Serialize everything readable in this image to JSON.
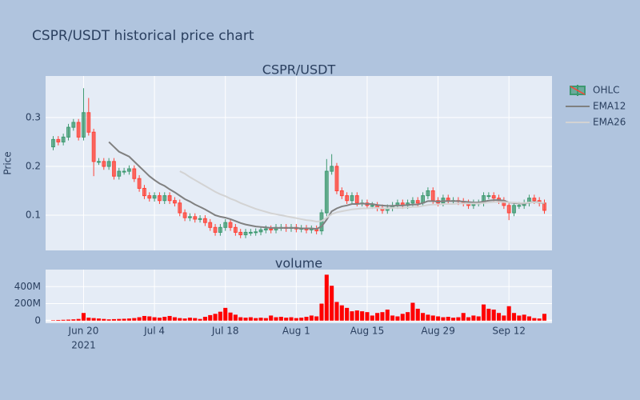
{
  "chart_data": {
    "type": "candlestick",
    "title": "CSPR/USDT historical price chart",
    "x": [
      "2021-06-14",
      "2021-06-15",
      "2021-06-16",
      "2021-06-17",
      "2021-06-18",
      "2021-06-19",
      "2021-06-20",
      "2021-06-21",
      "2021-06-22",
      "2021-06-23",
      "2021-06-24",
      "2021-06-25",
      "2021-06-26",
      "2021-06-27",
      "2021-06-28",
      "2021-06-29",
      "2021-06-30",
      "2021-07-01",
      "2021-07-02",
      "2021-07-03",
      "2021-07-04",
      "2021-07-05",
      "2021-07-06",
      "2021-07-07",
      "2021-07-08",
      "2021-07-09",
      "2021-07-10",
      "2021-07-11",
      "2021-07-12",
      "2021-07-13",
      "2021-07-14",
      "2021-07-15",
      "2021-07-16",
      "2021-07-17",
      "2021-07-18",
      "2021-07-19",
      "2021-07-20",
      "2021-07-21",
      "2021-07-22",
      "2021-07-23",
      "2021-07-24",
      "2021-07-25",
      "2021-07-26",
      "2021-07-27",
      "2021-07-28",
      "2021-07-29",
      "2021-07-30",
      "2021-07-31",
      "2021-08-01",
      "2021-08-02",
      "2021-08-03",
      "2021-08-04",
      "2021-08-05",
      "2021-08-06",
      "2021-08-07",
      "2021-08-08",
      "2021-08-09",
      "2021-08-10",
      "2021-08-11",
      "2021-08-12",
      "2021-08-13",
      "2021-08-14",
      "2021-08-15",
      "2021-08-16",
      "2021-08-17",
      "2021-08-18",
      "2021-08-19",
      "2021-08-20",
      "2021-08-21",
      "2021-08-22",
      "2021-08-23",
      "2021-08-24",
      "2021-08-25",
      "2021-08-26",
      "2021-08-27",
      "2021-08-28",
      "2021-08-29",
      "2021-08-30",
      "2021-08-31",
      "2021-09-01",
      "2021-09-02",
      "2021-09-03",
      "2021-09-04",
      "2021-09-05",
      "2021-09-06",
      "2021-09-07",
      "2021-09-08",
      "2021-09-09",
      "2021-09-10",
      "2021-09-11",
      "2021-09-12",
      "2021-09-13",
      "2021-09-14",
      "2021-09-15",
      "2021-09-16",
      "2021-09-17",
      "2021-09-18",
      "2021-09-19"
    ],
    "xlim": [
      "2021-06-12T12",
      "2021-09-20T12"
    ],
    "xticks": [
      {
        "value": "2021-06-20",
        "label": "Jun 20"
      },
      {
        "value": "2021-07-04",
        "label": "Jul 4"
      },
      {
        "value": "2021-07-18",
        "label": "Jul 18"
      },
      {
        "value": "2021-08-01",
        "label": "Aug 1"
      },
      {
        "value": "2021-08-15",
        "label": "Aug 15"
      },
      {
        "value": "2021-08-29",
        "label": "Aug 29"
      },
      {
        "value": "2021-09-12",
        "label": "Sep 12"
      }
    ],
    "xtick_year": "2021",
    "grid": true,
    "legend": "right",
    "panels": [
      {
        "title": "CSPR/USDT",
        "ylabel": "Price",
        "ylim": [
          0.028,
          0.385
        ],
        "yticks": [
          0.1,
          0.2,
          0.3
        ],
        "series": [
          {
            "name": "OHLC",
            "type": "ohlc",
            "increasing_color": "#3d9970",
            "decreasing_color": "#ff4136",
            "open": [
              0.24,
              0.255,
              0.25,
              0.26,
              0.28,
              0.29,
              0.26,
              0.31,
              0.27,
              0.21,
              0.21,
              0.2,
              0.21,
              0.18,
              0.19,
              0.19,
              0.195,
              0.175,
              0.155,
              0.14,
              0.135,
              0.14,
              0.13,
              0.14,
              0.13,
              0.125,
              0.105,
              0.095,
              0.097,
              0.092,
              0.093,
              0.085,
              0.075,
              0.065,
              0.075,
              0.085,
              0.075,
              0.065,
              0.06,
              0.065,
              0.065,
              0.066,
              0.07,
              0.072,
              0.07,
              0.075,
              0.075,
              0.073,
              0.075,
              0.072,
              0.073,
              0.07,
              0.072,
              0.068,
              0.105,
              0.19,
              0.2,
              0.15,
              0.14,
              0.13,
              0.14,
              0.125,
              0.125,
              0.12,
              0.12,
              0.115,
              0.11,
              0.115,
              0.12,
              0.125,
              0.12,
              0.125,
              0.13,
              0.125,
              0.14,
              0.15,
              0.13,
              0.125,
              0.135,
              0.13,
              0.13,
              0.128,
              0.125,
              0.12,
              0.125,
              0.125,
              0.14,
              0.14,
              0.135,
              0.13,
              0.12,
              0.105,
              0.12,
              0.12,
              0.125,
              0.135,
              0.13,
              0.125
            ],
            "high": [
              0.262,
              0.262,
              0.267,
              0.287,
              0.297,
              0.297,
              0.36,
              0.34,
              0.277,
              0.217,
              0.217,
              0.217,
              0.217,
              0.197,
              0.197,
              0.202,
              0.202,
              0.182,
              0.162,
              0.147,
              0.147,
              0.147,
              0.147,
              0.147,
              0.137,
              0.132,
              0.112,
              0.104,
              0.104,
              0.1,
              0.1,
              0.092,
              0.082,
              0.082,
              0.092,
              0.092,
              0.082,
              0.072,
              0.072,
              0.072,
              0.073,
              0.077,
              0.079,
              0.079,
              0.082,
              0.082,
              0.082,
              0.082,
              0.082,
              0.08,
              0.08,
              0.079,
              0.079,
              0.112,
              0.215,
              0.225,
              0.207,
              0.157,
              0.147,
              0.147,
              0.147,
              0.132,
              0.132,
              0.127,
              0.127,
              0.122,
              0.122,
              0.127,
              0.132,
              0.132,
              0.132,
              0.137,
              0.137,
              0.147,
              0.157,
              0.157,
              0.137,
              0.142,
              0.142,
              0.137,
              0.137,
              0.135,
              0.132,
              0.132,
              0.132,
              0.147,
              0.147,
              0.147,
              0.142,
              0.137,
              0.127,
              0.127,
              0.127,
              0.132,
              0.142,
              0.142,
              0.137,
              0.132
            ],
            "low": [
              0.233,
              0.243,
              0.243,
              0.253,
              0.273,
              0.253,
              0.253,
              0.263,
              0.18,
              0.203,
              0.193,
              0.193,
              0.173,
              0.173,
              0.183,
              0.183,
              0.168,
              0.148,
              0.133,
              0.128,
              0.128,
              0.123,
              0.123,
              0.123,
              0.118,
              0.098,
              0.088,
              0.088,
              0.085,
              0.085,
              0.078,
              0.068,
              0.058,
              0.058,
              0.068,
              0.068,
              0.058,
              0.053,
              0.053,
              0.058,
              0.058,
              0.059,
              0.063,
              0.063,
              0.063,
              0.068,
              0.066,
              0.066,
              0.065,
              0.065,
              0.063,
              0.063,
              0.061,
              0.06,
              0.098,
              0.183,
              0.143,
              0.133,
              0.123,
              0.123,
              0.118,
              0.118,
              0.113,
              0.113,
              0.108,
              0.103,
              0.103,
              0.108,
              0.113,
              0.113,
              0.113,
              0.118,
              0.118,
              0.118,
              0.133,
              0.123,
              0.118,
              0.118,
              0.123,
              0.123,
              0.121,
              0.118,
              0.113,
              0.113,
              0.118,
              0.118,
              0.133,
              0.128,
              0.123,
              0.113,
              0.09,
              0.098,
              0.113,
              0.113,
              0.118,
              0.123,
              0.118,
              0.103
            ],
            "close": [
              0.255,
              0.25,
              0.26,
              0.28,
              0.29,
              0.26,
              0.31,
              0.27,
              0.21,
              0.21,
              0.2,
              0.21,
              0.18,
              0.19,
              0.19,
              0.195,
              0.175,
              0.155,
              0.14,
              0.135,
              0.14,
              0.13,
              0.14,
              0.13,
              0.125,
              0.105,
              0.095,
              0.097,
              0.092,
              0.093,
              0.085,
              0.075,
              0.065,
              0.075,
              0.085,
              0.075,
              0.065,
              0.06,
              0.065,
              0.065,
              0.066,
              0.07,
              0.072,
              0.07,
              0.075,
              0.075,
              0.073,
              0.075,
              0.072,
              0.073,
              0.07,
              0.072,
              0.068,
              0.105,
              0.19,
              0.2,
              0.15,
              0.14,
              0.13,
              0.14,
              0.125,
              0.125,
              0.12,
              0.12,
              0.115,
              0.11,
              0.115,
              0.12,
              0.125,
              0.12,
              0.125,
              0.13,
              0.125,
              0.14,
              0.15,
              0.13,
              0.125,
              0.135,
              0.13,
              0.13,
              0.128,
              0.125,
              0.12,
              0.125,
              0.125,
              0.14,
              0.14,
              0.135,
              0.13,
              0.12,
              0.105,
              0.12,
              0.12,
              0.125,
              0.135,
              0.13,
              0.125,
              0.11
            ]
          },
          {
            "name": "EMA12",
            "type": "line",
            "color": "#808080",
            "values": [
              null,
              null,
              null,
              null,
              null,
              null,
              null,
              null,
              null,
              null,
              null,
              0.25,
              0.24,
              0.23,
              0.225,
              0.22,
              0.21,
              0.2,
              0.19,
              0.18,
              0.172,
              0.165,
              0.16,
              0.153,
              0.147,
              0.14,
              0.133,
              0.128,
              0.122,
              0.117,
              0.112,
              0.106,
              0.1,
              0.097,
              0.095,
              0.092,
              0.088,
              0.084,
              0.081,
              0.079,
              0.077,
              0.076,
              0.075,
              0.074,
              0.074,
              0.074,
              0.074,
              0.074,
              0.074,
              0.073,
              0.073,
              0.073,
              0.072,
              0.077,
              0.091,
              0.108,
              0.114,
              0.118,
              0.12,
              0.123,
              0.123,
              0.124,
              0.123,
              0.123,
              0.121,
              0.12,
              0.119,
              0.119,
              0.12,
              0.12,
              0.121,
              0.122,
              0.122,
              0.125,
              0.129,
              0.129,
              0.128,
              0.129,
              0.129,
              0.129,
              0.129,
              0.128,
              0.127,
              0.126,
              0.126,
              0.128,
              0.13,
              0.131,
              0.131,
              0.13,
              0.126,
              0.125,
              0.124,
              0.124,
              0.126,
              0.127,
              0.126,
              0.124
            ]
          },
          {
            "name": "EMA26",
            "type": "line",
            "color": "#d3d3d3",
            "values": [
              null,
              null,
              null,
              null,
              null,
              null,
              null,
              null,
              null,
              null,
              null,
              null,
              null,
              null,
              null,
              null,
              null,
              null,
              null,
              null,
              null,
              null,
              null,
              null,
              null,
              0.19,
              0.185,
              0.178,
              0.172,
              0.166,
              0.16,
              0.154,
              0.148,
              0.143,
              0.139,
              0.134,
              0.13,
              0.125,
              0.121,
              0.117,
              0.113,
              0.11,
              0.107,
              0.104,
              0.102,
              0.1,
              0.098,
              0.096,
              0.094,
              0.092,
              0.09,
              0.089,
              0.087,
              0.088,
              0.095,
              0.102,
              0.106,
              0.108,
              0.11,
              0.112,
              0.113,
              0.114,
              0.114,
              0.115,
              0.115,
              0.114,
              0.114,
              0.115,
              0.115,
              0.115,
              0.116,
              0.117,
              0.117,
              0.119,
              0.121,
              0.122,
              0.122,
              0.123,
              0.123,
              0.123,
              0.124,
              0.124,
              0.124,
              0.124,
              0.124,
              0.125,
              0.126,
              0.127,
              0.127,
              0.127,
              0.126,
              0.126,
              0.125,
              0.125,
              0.126,
              0.126,
              0.126,
              0.125
            ]
          }
        ]
      },
      {
        "title": "volume",
        "ylim": [
          -30000000,
          600000000
        ],
        "yticks": [
          0,
          {
            "value": 200000000,
            "label": "200M"
          },
          {
            "value": 400000000,
            "label": "400M"
          }
        ],
        "series": [
          {
            "type": "bar",
            "color": "#ff0000",
            "values": [
              5000000,
              8000000,
              10000000,
              12000000,
              15000000,
              20000000,
              90000000,
              35000000,
              30000000,
              25000000,
              20000000,
              15000000,
              18000000,
              20000000,
              22000000,
              25000000,
              30000000,
              40000000,
              55000000,
              50000000,
              40000000,
              35000000,
              45000000,
              55000000,
              40000000,
              30000000,
              25000000,
              35000000,
              30000000,
              20000000,
              45000000,
              65000000,
              80000000,
              105000000,
              150000000,
              95000000,
              70000000,
              40000000,
              35000000,
              40000000,
              30000000,
              35000000,
              30000000,
              60000000,
              40000000,
              45000000,
              35000000,
              40000000,
              30000000,
              35000000,
              45000000,
              60000000,
              50000000,
              200000000,
              540000000,
              410000000,
              220000000,
              180000000,
              150000000,
              110000000,
              120000000,
              110000000,
              100000000,
              60000000,
              90000000,
              100000000,
              130000000,
              60000000,
              50000000,
              80000000,
              100000000,
              210000000,
              140000000,
              90000000,
              70000000,
              60000000,
              50000000,
              40000000,
              45000000,
              35000000,
              40000000,
              90000000,
              40000000,
              60000000,
              50000000,
              190000000,
              140000000,
              130000000,
              90000000,
              60000000,
              170000000,
              90000000,
              60000000,
              70000000,
              50000000,
              30000000,
              25000000,
              80000000
            ]
          }
        ]
      }
    ]
  }
}
